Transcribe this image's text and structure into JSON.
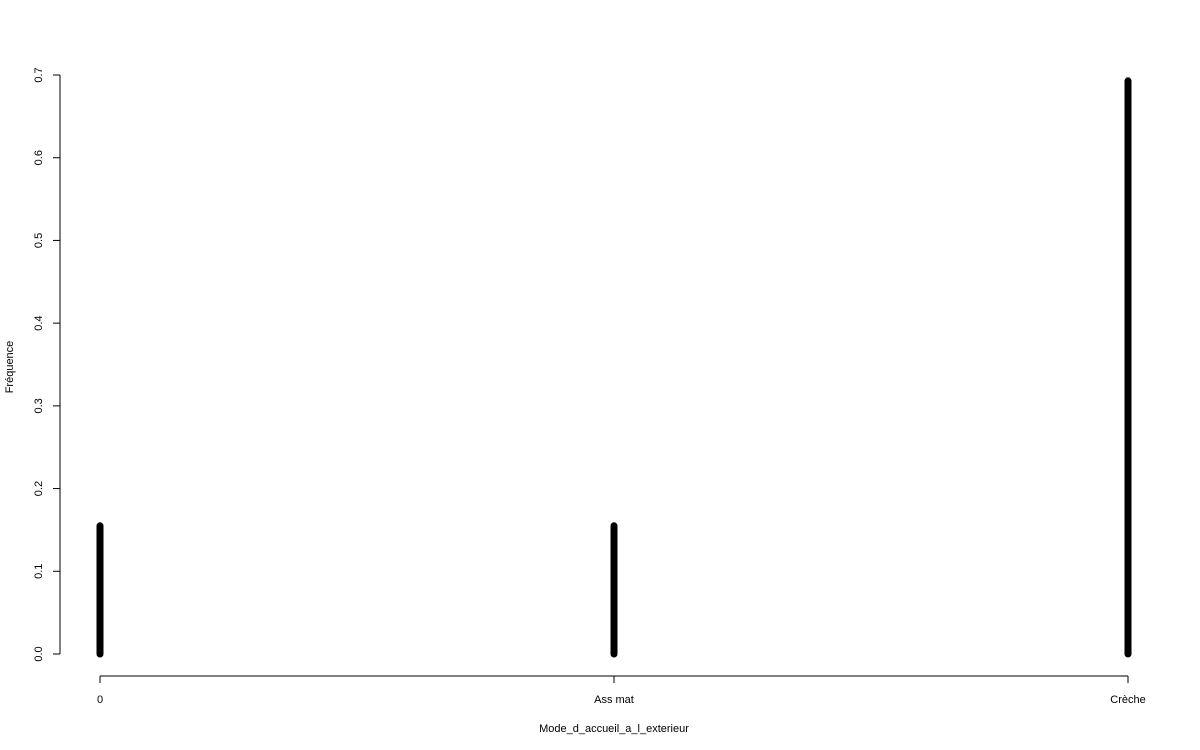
{
  "chart_data": {
    "type": "bar",
    "categories": [
      "0",
      "Ass mat",
      "Crèche"
    ],
    "values": [
      0.155,
      0.155,
      0.693
    ],
    "title": "",
    "xlabel": "Mode_d_accueil_a_l_exterieur",
    "ylabel": "Fréquence",
    "ylim": [
      0,
      0.7
    ],
    "yticks": [
      "0.0",
      "0.1",
      "0.2",
      "0.3",
      "0.4",
      "0.5",
      "0.6",
      "0.7"
    ],
    "grid": false,
    "bar_color": "#000000"
  }
}
